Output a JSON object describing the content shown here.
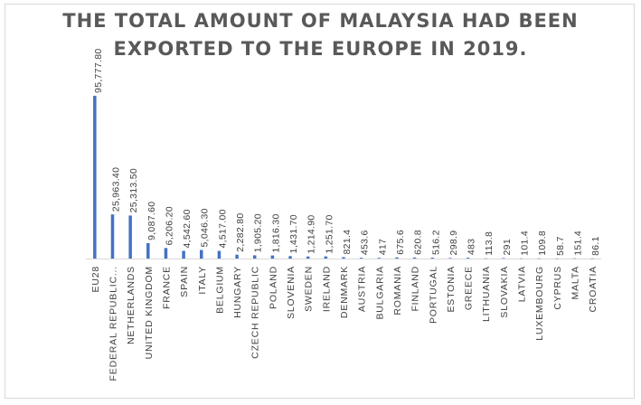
{
  "chart_data": {
    "type": "bar",
    "title_lines": [
      "THE TOTAL AMOUNT OF MALAYSIA HAD BEEN",
      "EXPORTED TO THE EUROPE IN 2019."
    ],
    "xlabel": "",
    "ylabel": "",
    "ylim": [
      0,
      100000
    ],
    "grid": false,
    "legend": "none",
    "bar_color": "#4472c4",
    "categories": [
      "EU28",
      "FEDERAL REPUBLIC...",
      "NETHERLANDS",
      "UNITED KINGDOM",
      "FRANCE",
      "SPAIN",
      "ITALY",
      "BELGIUM",
      "HUNGARY",
      "CZECH REPUBLIC",
      "POLAND",
      "SLOVENIA",
      "SWEDEN",
      "IRELAND",
      "DENMARK",
      "AUSTRIA",
      "BULGARIA",
      "ROMANIA",
      "FINLAND",
      "PORTUGAL",
      "ESTONIA",
      "GREECE",
      "LITHUANIA",
      "SLOVAKIA",
      "LATVIA",
      "LUXEMBOURG",
      "CYPRUS",
      "MALTA",
      "CROATIA"
    ],
    "values": [
      95777.8,
      25963.4,
      25313.5,
      9087.6,
      6206.2,
      4542.6,
      5046.3,
      4517.0,
      2282.8,
      1905.2,
      1816.3,
      1431.7,
      1214.9,
      1251.7,
      821.4,
      453.6,
      417,
      675.6,
      620.8,
      516.2,
      298.9,
      483,
      113.8,
      291,
      101.4,
      109.8,
      58.7,
      151.4,
      86.1
    ],
    "data_labels": [
      "95,777.80",
      "25,963.40",
      "25,313.50",
      "9,087.60",
      "6,206.20",
      "4,542.60",
      "5,046.30",
      "4,517.00",
      "2,282.80",
      "1,905.20",
      "1,816.30",
      "1,431.70",
      "1,214.90",
      "1,251.70",
      "821.4",
      "453.6",
      "417",
      "675.6",
      "620.8",
      "516.2",
      "298.9",
      "483",
      "113.8",
      "291",
      "101.4",
      "109.8",
      "58.7",
      "151.4",
      "86.1"
    ]
  }
}
